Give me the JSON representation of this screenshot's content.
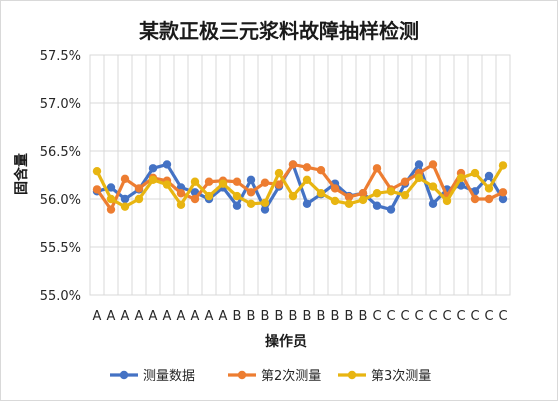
{
  "chart_data": {
    "type": "line",
    "title": "某款正极三元浆料故障抽样检测",
    "xlabel": "操作员",
    "ylabel": "固含量",
    "ylim": [
      0.55,
      0.575
    ],
    "y_ticks": [
      "55.0%",
      "55.5%",
      "56.0%",
      "56.5%",
      "57.0%",
      "57.5%"
    ],
    "y_tick_values": [
      0.55,
      0.555,
      0.56,
      0.565,
      0.57,
      0.575
    ],
    "categories": [
      "A",
      "A",
      "A",
      "A",
      "A",
      "A",
      "A",
      "A",
      "A",
      "A",
      "B",
      "B",
      "B",
      "B",
      "B",
      "B",
      "B",
      "B",
      "B",
      "B",
      "C",
      "C",
      "C",
      "C",
      "C",
      "C",
      "C",
      "C",
      "C",
      "C"
    ],
    "grid": true,
    "legend_position": "bottom",
    "series": [
      {
        "name": "测量数据",
        "color": "#4472C4",
        "values": [
          0.5608,
          0.5612,
          0.56,
          0.561,
          0.5632,
          0.5636,
          0.5612,
          0.5607,
          0.56,
          0.5612,
          0.5593,
          0.562,
          0.5589,
          0.5613,
          0.5636,
          0.5595,
          0.5605,
          0.5616,
          0.5603,
          0.5606,
          0.5593,
          0.5589,
          0.5616,
          0.5636,
          0.5595,
          0.561,
          0.5614,
          0.5608,
          0.5624,
          0.56
        ]
      },
      {
        "name": "第2次测量",
        "color": "#ED7D31",
        "values": [
          0.561,
          0.5589,
          0.5621,
          0.5611,
          0.5622,
          0.5619,
          0.5606,
          0.56,
          0.5618,
          0.5619,
          0.5618,
          0.5607,
          0.5617,
          0.5615,
          0.5636,
          0.5633,
          0.563,
          0.5611,
          0.5602,
          0.5606,
          0.5632,
          0.561,
          0.5618,
          0.5627,
          0.5636,
          0.5603,
          0.5627,
          0.56,
          0.56,
          0.5607
        ]
      },
      {
        "name": "第3次测量",
        "color": "#E8B511",
        "values": [
          0.5629,
          0.56,
          0.5592,
          0.56,
          0.562,
          0.5615,
          0.5594,
          0.5618,
          0.5603,
          0.5616,
          0.5603,
          0.5595,
          0.5596,
          0.5627,
          0.5603,
          0.562,
          0.5606,
          0.5598,
          0.5595,
          0.5599,
          0.5606,
          0.5608,
          0.5604,
          0.5622,
          0.5613,
          0.5598,
          0.5622,
          0.5627,
          0.5611,
          0.5635
        ]
      }
    ]
  }
}
